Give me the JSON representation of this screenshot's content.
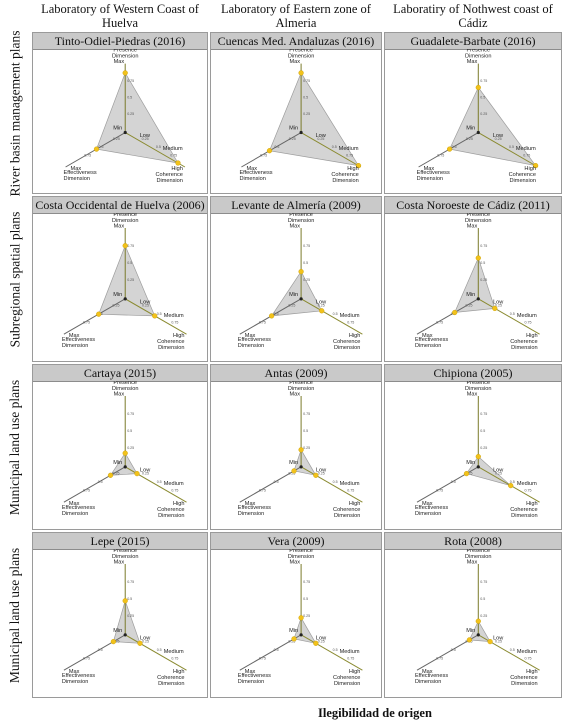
{
  "columns": [
    "Laboratory of Western Coast of Huelva",
    "Laboratory of Eastern zone of Almeria",
    "Laboratiry of Nothwest coast of Cádiz"
  ],
  "rows": [
    "River basin management plans",
    "Subregional spatial plans",
    "Municipal land use plans",
    "Municipal land use plans"
  ],
  "cells": [
    [
      {
        "title": "Tinto-Odiel-Piedras (2016)",
        "values": {
          "presence": 0.9,
          "coherence": 0.92,
          "effectiveness": 0.5
        }
      },
      {
        "title": "Cuencas Med. Andaluzas (2016)",
        "values": {
          "presence": 0.9,
          "coherence": 1.0,
          "effectiveness": 0.55
        }
      },
      {
        "title": "Guadalete-Barbate (2016)",
        "values": {
          "presence": 0.68,
          "coherence": 1.0,
          "effectiveness": 0.5
        }
      }
    ],
    [
      {
        "title": "Costa Occidental de Huelva (2006)",
        "values": {
          "presence": 0.78,
          "coherence": 0.5,
          "effectiveness": 0.45
        }
      },
      {
        "title": "Levante de Almería (2009)",
        "values": {
          "presence": 0.4,
          "coherence": 0.35,
          "effectiveness": 0.5
        }
      },
      {
        "title": "Costa Noroeste de Cádiz (2011)",
        "values": {
          "presence": 0.6,
          "coherence": 0.28,
          "effectiveness": 0.4
        }
      }
    ],
    [
      {
        "title": "Cartaya (2015)",
        "values": {
          "presence": 0.2,
          "coherence": 0.2,
          "effectiveness": 0.25
        }
      },
      {
        "title": "Antas (2009)",
        "values": {
          "presence": 0.25,
          "coherence": 0.25,
          "effectiveness": 0.12
        }
      },
      {
        "title": "Chipiona (2005)",
        "values": {
          "presence": 0.15,
          "coherence": 0.55,
          "effectiveness": 0.2
        }
      }
    ],
    [
      {
        "title": "Lepe (2015)",
        "values": {
          "presence": 0.5,
          "coherence": 0.25,
          "effectiveness": 0.2
        }
      },
      {
        "title": "Vera (2009)",
        "values": {
          "presence": 0.25,
          "coherence": 0.25,
          "effectiveness": 0.12
        }
      },
      {
        "title": "Rota (2008)",
        "values": {
          "presence": 0.2,
          "coherence": 0.2,
          "effectiveness": 0.15
        }
      }
    ]
  ],
  "radar": {
    "axes": {
      "presence": [
        "Presence",
        "Dimension"
      ],
      "coherence": [
        "High",
        "Coherence",
        "Dimension"
      ],
      "effectiveness": [
        "Effectiveness",
        "Dimension"
      ]
    },
    "max_label": "Max",
    "min_label": "Min",
    "low_label": "Low",
    "medium_label": "Medium",
    "ticks": [
      "0.75",
      "0.5",
      "0.25"
    ],
    "colors": {
      "fill": "#d4d4d4",
      "outline": "#9d9d9d",
      "axis_presence": "#7a7a2a",
      "axis_coherence": "#8a8a30",
      "axis_effectiveness": "#666666",
      "point": "#f2c21a",
      "center": "#222222"
    }
  },
  "footer": "Ilegibilidad de origen"
}
